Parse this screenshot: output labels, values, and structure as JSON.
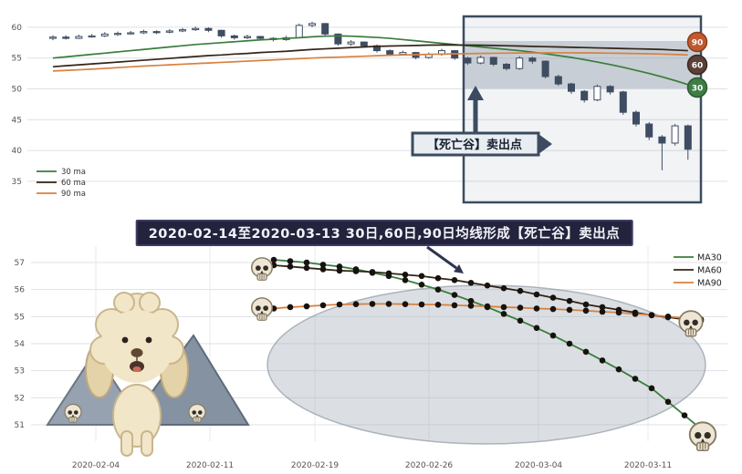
{
  "banner": {
    "text": "2020-02-14至2020-03-13 30日,60日,90日均线形成【死亡谷】卖出点"
  },
  "colors": {
    "ma30": "#3a7d3c",
    "ma60": "#342418",
    "ma90": "#d9813f",
    "candle": "#3f4d63",
    "box": "#3c4b5f",
    "grid": "#dde1e6",
    "tick": "#555555",
    "ellipse_fill": "rgba(165,175,185,0.40)",
    "ellipse_stroke": "rgba(130,142,152,0.6)",
    "marker": "#17120e"
  },
  "chart_data": [
    {
      "id": "top-candlestick",
      "type": "candlestick",
      "title": "",
      "ylim": [
        31,
        62.5
      ],
      "yticks": [
        35,
        40,
        45,
        50,
        55,
        60
      ],
      "grid": true,
      "legend": [
        "30 ma",
        "60 ma",
        "90 ma"
      ],
      "legend_position": "lower left",
      "annotation": "【死亡谷】卖出点",
      "badges": [
        {
          "label": "90",
          "fill": "#c05a2e",
          "ring": "#8a3c1d"
        },
        {
          "label": "60",
          "fill": "#5a4036",
          "ring": "#3a2921"
        },
        {
          "label": "30",
          "fill": "#3e7d44",
          "ring": "#2b5a30"
        }
      ],
      "candles_ohlc": [
        [
          58.2,
          58.7,
          57.9,
          58.4
        ],
        [
          58.4,
          58.7,
          58.0,
          58.2
        ],
        [
          58.2,
          58.8,
          58.1,
          58.5
        ],
        [
          58.5,
          58.9,
          58.3,
          58.6
        ],
        [
          58.6,
          59.2,
          58.4,
          58.9
        ],
        [
          58.9,
          59.3,
          58.6,
          59.0
        ],
        [
          59.0,
          59.4,
          58.8,
          59.1
        ],
        [
          59.1,
          59.6,
          58.9,
          59.3
        ],
        [
          59.3,
          59.5,
          58.9,
          59.2
        ],
        [
          59.2,
          59.7,
          59.0,
          59.4
        ],
        [
          59.4,
          59.9,
          59.2,
          59.6
        ],
        [
          59.6,
          60.1,
          59.4,
          59.8
        ],
        [
          59.8,
          60.0,
          59.2,
          59.5
        ],
        [
          59.5,
          59.6,
          58.3,
          58.6
        ],
        [
          58.6,
          58.8,
          58.0,
          58.3
        ],
        [
          58.3,
          58.8,
          58.1,
          58.5
        ],
        [
          58.5,
          58.6,
          57.9,
          58.2
        ],
        [
          58.2,
          58.4,
          57.7,
          58.0
        ],
        [
          58.0,
          58.6,
          57.8,
          58.3
        ],
        [
          58.3,
          60.6,
          58.2,
          60.3
        ],
        [
          60.3,
          60.9,
          60.0,
          60.6
        ],
        [
          60.6,
          60.7,
          58.6,
          58.9
        ],
        [
          58.9,
          59.0,
          57.0,
          57.3
        ],
        [
          57.3,
          57.9,
          57.0,
          57.6
        ],
        [
          57.6,
          57.7,
          56.7,
          57.0
        ],
        [
          57.0,
          57.2,
          55.9,
          56.2
        ],
        [
          56.2,
          56.4,
          55.3,
          55.6
        ],
        [
          55.6,
          56.2,
          55.4,
          55.9
        ],
        [
          55.9,
          56.0,
          54.8,
          55.1
        ],
        [
          55.1,
          55.9,
          54.9,
          55.6
        ],
        [
          55.6,
          56.5,
          55.4,
          56.2
        ],
        [
          56.2,
          56.3,
          54.7,
          55.0
        ],
        [
          55.0,
          55.2,
          53.9,
          54.2
        ],
        [
          54.2,
          55.4,
          54.0,
          55.1
        ],
        [
          55.1,
          55.2,
          53.7,
          54.0
        ],
        [
          54.0,
          54.2,
          53.0,
          53.3
        ],
        [
          53.3,
          55.3,
          53.1,
          55.0
        ],
        [
          55.0,
          55.2,
          54.1,
          54.5
        ],
        [
          54.5,
          54.6,
          51.7,
          52.0
        ],
        [
          52.0,
          52.3,
          50.5,
          50.8
        ],
        [
          50.8,
          51.0,
          49.2,
          49.6
        ],
        [
          49.6,
          49.8,
          47.8,
          48.2
        ],
        [
          48.2,
          50.7,
          48.0,
          50.4
        ],
        [
          50.4,
          50.6,
          49.1,
          49.5
        ],
        [
          49.5,
          49.7,
          45.8,
          46.2
        ],
        [
          46.2,
          46.5,
          43.9,
          44.3
        ],
        [
          44.3,
          44.6,
          41.7,
          42.2
        ],
        [
          42.2,
          42.5,
          36.8,
          41.2
        ],
        [
          41.2,
          44.3,
          40.8,
          44.0
        ],
        [
          44.0,
          44.2,
          38.5,
          40.2
        ]
      ],
      "series": [
        {
          "name": "30 ma",
          "color": "#3a7d3c",
          "values": [
            55.0,
            55.2,
            55.4,
            55.6,
            55.8,
            56.0,
            56.2,
            56.4,
            56.6,
            56.8,
            57.0,
            57.2,
            57.35,
            57.5,
            57.65,
            57.8,
            57.95,
            58.05,
            58.2,
            58.3,
            58.45,
            58.55,
            58.6,
            58.55,
            58.45,
            58.35,
            58.2,
            58.0,
            57.8,
            57.6,
            57.4,
            57.2,
            57.0,
            56.8,
            56.6,
            56.4,
            56.2,
            55.95,
            55.7,
            55.4,
            55.1,
            54.75,
            54.35,
            53.95,
            53.5,
            53.0,
            52.5,
            51.95,
            51.35,
            50.7
          ]
        },
        {
          "name": "60 ma",
          "color": "#342418",
          "values": [
            53.6,
            53.75,
            53.9,
            54.05,
            54.2,
            54.35,
            54.5,
            54.65,
            54.8,
            54.95,
            55.1,
            55.25,
            55.4,
            55.5,
            55.65,
            55.75,
            55.9,
            56.0,
            56.1,
            56.25,
            56.4,
            56.5,
            56.6,
            56.7,
            56.8,
            56.9,
            56.95,
            57.0,
            57.05,
            57.1,
            57.12,
            57.12,
            57.1,
            57.08,
            57.05,
            57.0,
            56.95,
            56.9,
            56.85,
            56.8,
            56.75,
            56.7,
            56.65,
            56.6,
            56.55,
            56.5,
            56.45,
            56.4,
            56.3,
            56.2
          ]
        },
        {
          "name": "90 ma",
          "color": "#d9813f",
          "values": [
            52.9,
            53.0,
            53.1,
            53.2,
            53.32,
            53.45,
            53.58,
            53.7,
            53.8,
            53.9,
            54.0,
            54.1,
            54.2,
            54.3,
            54.4,
            54.5,
            54.6,
            54.7,
            54.8,
            54.9,
            55.0,
            55.08,
            55.15,
            55.22,
            55.3,
            55.38,
            55.45,
            55.5,
            55.55,
            55.6,
            55.65,
            55.68,
            55.72,
            55.75,
            55.78,
            55.8,
            55.82,
            55.83,
            55.84,
            55.85,
            55.85,
            55.84,
            55.82,
            55.8,
            55.77,
            55.73,
            55.7,
            55.65,
            55.58,
            55.5
          ]
        }
      ]
    },
    {
      "id": "bottom-ma-lines",
      "type": "line",
      "title": "",
      "ylim": [
        50.6,
        57.6
      ],
      "yticks": [
        51,
        52,
        53,
        54,
        55,
        56,
        57
      ],
      "xticks": [
        "2020-02-04",
        "2020-02-11",
        "2020-02-19",
        "2020-02-26",
        "2020-03-04",
        "2020-03-11"
      ],
      "date_range": [
        "2020-02-14",
        "2020-03-13"
      ],
      "grid": true,
      "marker": "black-dot",
      "legend": [
        "MA30",
        "MA60",
        "MA90"
      ],
      "legend_position": "upper right",
      "decorations": [
        "skull-icons",
        "poodle-illustration",
        "mountain-icons",
        "highlight-ellipse"
      ],
      "series": [
        {
          "name": "MA30",
          "color": "#3a7d3c",
          "values": [
            57.1,
            57.05,
            57.0,
            56.92,
            56.85,
            56.75,
            56.62,
            56.5,
            56.35,
            56.18,
            56.0,
            55.8,
            55.58,
            55.35,
            55.1,
            54.85,
            54.58,
            54.3,
            54.0,
            53.7,
            53.38,
            53.05,
            52.7,
            52.35,
            51.85,
            51.35,
            50.85
          ]
        },
        {
          "name": "MA60",
          "color": "#342418",
          "values": [
            56.9,
            56.85,
            56.8,
            56.75,
            56.7,
            56.68,
            56.65,
            56.6,
            56.55,
            56.5,
            56.42,
            56.35,
            56.25,
            56.15,
            56.05,
            55.95,
            55.82,
            55.7,
            55.58,
            55.45,
            55.35,
            55.25,
            55.15,
            55.05,
            54.98,
            54.9,
            54.85
          ]
        },
        {
          "name": "MA90",
          "color": "#d9813f",
          "values": [
            55.3,
            55.35,
            55.38,
            55.42,
            55.45,
            55.46,
            55.47,
            55.47,
            55.46,
            55.45,
            55.44,
            55.42,
            55.4,
            55.38,
            55.35,
            55.33,
            55.3,
            55.28,
            55.25,
            55.22,
            55.18,
            55.15,
            55.1,
            55.06,
            55.0,
            54.95,
            54.9
          ]
        }
      ]
    }
  ]
}
